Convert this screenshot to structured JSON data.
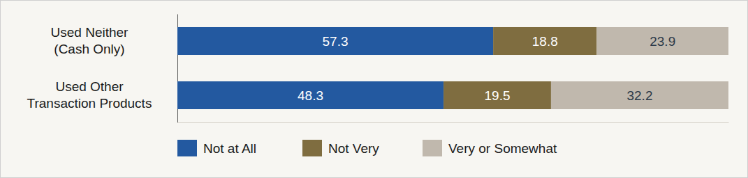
{
  "chart_data": {
    "type": "bar",
    "orientation": "horizontal",
    "stacked": true,
    "data_labels": true,
    "tick_labels": "y",
    "legend": "bottom",
    "categories": [
      "Used Neither\n(Cash Only)",
      "Used Other\nTransaction Products"
    ],
    "xlim": [
      0,
      100
    ],
    "series": [
      {
        "name": "Not at All",
        "color": "#2359a0",
        "values": [
          57.3,
          48.3
        ]
      },
      {
        "name": "Not Very",
        "color": "#7f6d40",
        "values": [
          18.8,
          19.5
        ]
      },
      {
        "name": "Very or Somewhat",
        "color": "#c0b8ad",
        "values": [
          23.9,
          32.2
        ]
      }
    ]
  }
}
